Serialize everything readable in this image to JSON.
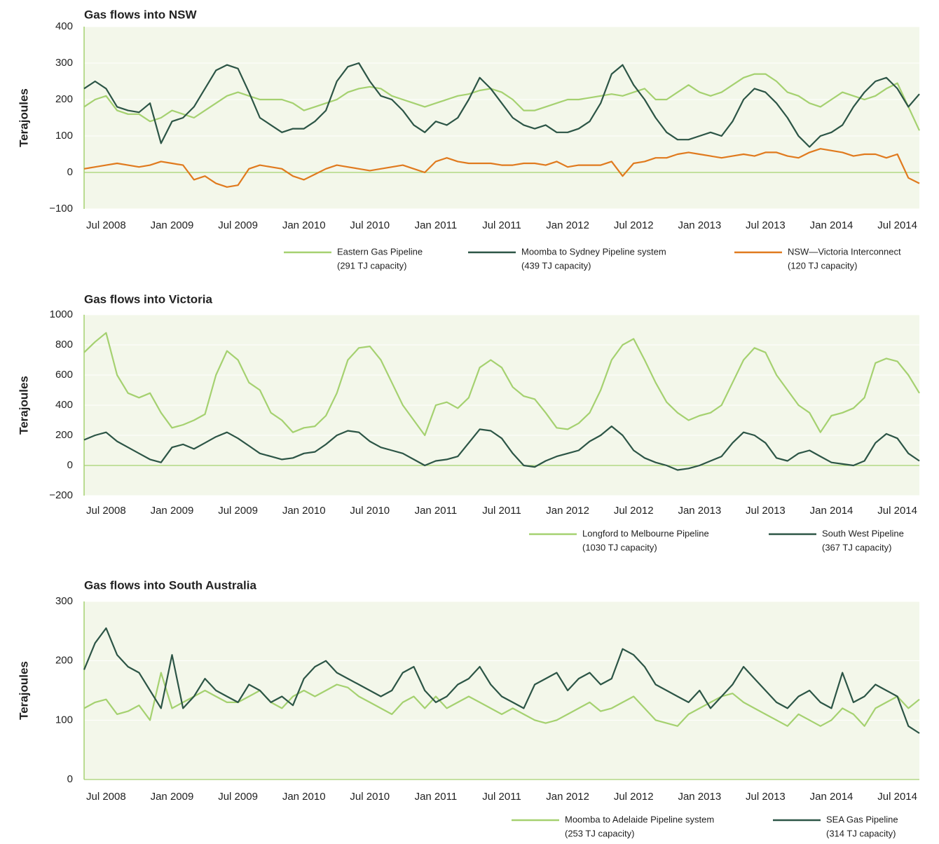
{
  "chart_data": [
    {
      "type": "line",
      "title": "Gas flows into NSW",
      "y_label": "Terajoules",
      "grid": true,
      "x": [
        "2008-05",
        "2008-06",
        "2008-07",
        "2008-08",
        "2008-09",
        "2008-10",
        "2008-11",
        "2008-12",
        "2009-01",
        "2009-02",
        "2009-03",
        "2009-04",
        "2009-05",
        "2009-06",
        "2009-07",
        "2009-08",
        "2009-09",
        "2009-10",
        "2009-11",
        "2009-12",
        "2010-01",
        "2010-02",
        "2010-03",
        "2010-04",
        "2010-05",
        "2010-06",
        "2010-07",
        "2010-08",
        "2010-09",
        "2010-10",
        "2010-11",
        "2010-12",
        "2011-01",
        "2011-02",
        "2011-03",
        "2011-04",
        "2011-05",
        "2011-06",
        "2011-07",
        "2011-08",
        "2011-09",
        "2011-10",
        "2011-11",
        "2011-12",
        "2012-01",
        "2012-02",
        "2012-03",
        "2012-04",
        "2012-05",
        "2012-06",
        "2012-07",
        "2012-08",
        "2012-09",
        "2012-10",
        "2012-11",
        "2012-12",
        "2013-01",
        "2013-02",
        "2013-03",
        "2013-04",
        "2013-05",
        "2013-06",
        "2013-07",
        "2013-08",
        "2013-09",
        "2013-10",
        "2013-11",
        "2013-12",
        "2014-01",
        "2014-02",
        "2014-03",
        "2014-04",
        "2014-05",
        "2014-06",
        "2014-07",
        "2014-08",
        "2014-09"
      ],
      "xlim": [
        "2008-05",
        "2014-09"
      ],
      "xticks": [
        {
          "value": "2008-07",
          "label": "Jul 2008"
        },
        {
          "value": "2009-01",
          "label": "Jan 2009"
        },
        {
          "value": "2009-07",
          "label": "Jul 2009"
        },
        {
          "value": "2010-01",
          "label": "Jan 2010"
        },
        {
          "value": "2010-07",
          "label": "Jul 2010"
        },
        {
          "value": "2011-01",
          "label": "Jan 2011"
        },
        {
          "value": "2011-07",
          "label": "Jul 2011"
        },
        {
          "value": "2012-01",
          "label": "Jan 2012"
        },
        {
          "value": "2012-07",
          "label": "Jul 2012"
        },
        {
          "value": "2013-01",
          "label": "Jan 2013"
        },
        {
          "value": "2013-07",
          "label": "Jul 2013"
        },
        {
          "value": "2014-01",
          "label": "Jan 2014"
        },
        {
          "value": "2014-07",
          "label": "Jul 2014"
        }
      ],
      "ylim": [
        -100,
        400
      ],
      "yticks": [
        {
          "value": -100,
          "label": "−100"
        },
        0,
        100,
        200,
        300,
        400
      ],
      "series": [
        {
          "name": "Eastern Gas Pipeline",
          "capacity": "(291 TJ capacity)",
          "color": "#a5d170",
          "values": [
            180,
            200,
            210,
            170,
            160,
            160,
            140,
            150,
            170,
            160,
            150,
            170,
            190,
            210,
            220,
            210,
            200,
            200,
            200,
            190,
            170,
            180,
            190,
            200,
            220,
            230,
            235,
            230,
            210,
            200,
            190,
            180,
            190,
            200,
            210,
            215,
            225,
            230,
            220,
            200,
            170,
            170,
            180,
            190,
            200,
            200,
            205,
            210,
            215,
            210,
            220,
            230,
            200,
            200,
            220,
            240,
            220,
            210,
            220,
            240,
            260,
            270,
            270,
            250,
            220,
            210,
            190,
            180,
            200,
            220,
            210,
            200,
            210,
            230,
            245,
            180,
            115
          ]
        },
        {
          "name": "Moomba to Sydney Pipeline system",
          "capacity": "(439 TJ capacity)",
          "color": "#2c5546",
          "values": [
            230,
            250,
            230,
            180,
            170,
            165,
            190,
            80,
            140,
            150,
            180,
            230,
            280,
            295,
            285,
            220,
            150,
            130,
            110,
            120,
            120,
            140,
            170,
            250,
            290,
            300,
            250,
            210,
            200,
            170,
            130,
            110,
            140,
            130,
            150,
            200,
            260,
            230,
            190,
            150,
            130,
            120,
            130,
            110,
            110,
            120,
            140,
            190,
            270,
            295,
            240,
            200,
            150,
            110,
            90,
            90,
            100,
            110,
            100,
            140,
            200,
            230,
            220,
            190,
            150,
            100,
            70,
            100,
            110,
            130,
            180,
            220,
            250,
            260,
            230,
            180,
            215
          ]
        },
        {
          "name": "NSW—Victoria Interconnect",
          "capacity": "(120 TJ capacity)",
          "color": "#e07a1e",
          "values": [
            10,
            15,
            20,
            25,
            20,
            15,
            20,
            30,
            25,
            20,
            -20,
            -10,
            -30,
            -40,
            -35,
            10,
            20,
            15,
            10,
            -10,
            -20,
            -5,
            10,
            20,
            15,
            10,
            5,
            10,
            15,
            20,
            10,
            0,
            30,
            40,
            30,
            25,
            25,
            25,
            20,
            20,
            25,
            25,
            20,
            30,
            15,
            20,
            20,
            20,
            30,
            -10,
            25,
            30,
            40,
            40,
            50,
            55,
            50,
            45,
            40,
            45,
            50,
            45,
            55,
            55,
            45,
            40,
            55,
            65,
            60,
            55,
            45,
            50,
            50,
            40,
            50,
            -15,
            -30
          ]
        }
      ]
    },
    {
      "type": "line",
      "title": "Gas flows into Victoria",
      "y_label": "Terajoules",
      "grid": true,
      "x": [
        "2008-05",
        "2008-06",
        "2008-07",
        "2008-08",
        "2008-09",
        "2008-10",
        "2008-11",
        "2008-12",
        "2009-01",
        "2009-02",
        "2009-03",
        "2009-04",
        "2009-05",
        "2009-06",
        "2009-07",
        "2009-08",
        "2009-09",
        "2009-10",
        "2009-11",
        "2009-12",
        "2010-01",
        "2010-02",
        "2010-03",
        "2010-04",
        "2010-05",
        "2010-06",
        "2010-07",
        "2010-08",
        "2010-09",
        "2010-10",
        "2010-11",
        "2010-12",
        "2011-01",
        "2011-02",
        "2011-03",
        "2011-04",
        "2011-05",
        "2011-06",
        "2011-07",
        "2011-08",
        "2011-09",
        "2011-10",
        "2011-11",
        "2011-12",
        "2012-01",
        "2012-02",
        "2012-03",
        "2012-04",
        "2012-05",
        "2012-06",
        "2012-07",
        "2012-08",
        "2012-09",
        "2012-10",
        "2012-11",
        "2012-12",
        "2013-01",
        "2013-02",
        "2013-03",
        "2013-04",
        "2013-05",
        "2013-06",
        "2013-07",
        "2013-08",
        "2013-09",
        "2013-10",
        "2013-11",
        "2013-12",
        "2014-01",
        "2014-02",
        "2014-03",
        "2014-04",
        "2014-05",
        "2014-06",
        "2014-07",
        "2014-08",
        "2014-09"
      ],
      "xlim": [
        "2008-05",
        "2014-09"
      ],
      "xticks": [
        {
          "value": "2008-07",
          "label": "Jul 2008"
        },
        {
          "value": "2009-01",
          "label": "Jan 2009"
        },
        {
          "value": "2009-07",
          "label": "Jul 2009"
        },
        {
          "value": "2010-01",
          "label": "Jan 2010"
        },
        {
          "value": "2010-07",
          "label": "Jul 2010"
        },
        {
          "value": "2011-01",
          "label": "Jan 2011"
        },
        {
          "value": "2011-07",
          "label": "Jul 2011"
        },
        {
          "value": "2012-01",
          "label": "Jan 2012"
        },
        {
          "value": "2012-07",
          "label": "Jul 2012"
        },
        {
          "value": "2013-01",
          "label": "Jan 2013"
        },
        {
          "value": "2013-07",
          "label": "Jul 2013"
        },
        {
          "value": "2014-01",
          "label": "Jan 2014"
        },
        {
          "value": "2014-07",
          "label": "Jul 2014"
        }
      ],
      "ylim": [
        -200,
        1000
      ],
      "yticks": [
        {
          "value": -200,
          "label": "−200"
        },
        0,
        200,
        400,
        600,
        800,
        1000
      ],
      "series": [
        {
          "name": "Longford to Melbourne Pipeline",
          "capacity": "(1030 TJ capacity)",
          "color": "#a5d170",
          "values": [
            750,
            820,
            880,
            600,
            480,
            450,
            480,
            350,
            250,
            270,
            300,
            340,
            600,
            760,
            700,
            550,
            500,
            350,
            300,
            220,
            250,
            260,
            330,
            480,
            700,
            780,
            790,
            700,
            550,
            400,
            300,
            200,
            400,
            420,
            380,
            450,
            650,
            700,
            650,
            520,
            460,
            440,
            350,
            250,
            240,
            280,
            350,
            500,
            700,
            800,
            840,
            700,
            550,
            420,
            350,
            300,
            330,
            350,
            400,
            550,
            700,
            780,
            750,
            600,
            500,
            400,
            350,
            220,
            330,
            350,
            380,
            450,
            680,
            710,
            690,
            600,
            480
          ]
        },
        {
          "name": "South West Pipeline",
          "capacity": "(367 TJ capacity)",
          "color": "#2c5546",
          "values": [
            170,
            200,
            220,
            160,
            120,
            80,
            40,
            20,
            120,
            140,
            110,
            150,
            190,
            220,
            180,
            130,
            80,
            60,
            40,
            50,
            80,
            90,
            140,
            200,
            230,
            220,
            160,
            120,
            100,
            80,
            40,
            0,
            30,
            40,
            60,
            150,
            240,
            230,
            180,
            80,
            0,
            -10,
            30,
            60,
            80,
            100,
            160,
            200,
            260,
            200,
            100,
            50,
            20,
            0,
            -30,
            -20,
            0,
            30,
            60,
            150,
            220,
            200,
            150,
            50,
            30,
            80,
            100,
            60,
            20,
            10,
            0,
            30,
            150,
            210,
            180,
            80,
            30
          ]
        }
      ]
    },
    {
      "type": "line",
      "title": "Gas flows into South Australia",
      "y_label": "Terajoules",
      "grid": true,
      "x": [
        "2008-05",
        "2008-06",
        "2008-07",
        "2008-08",
        "2008-09",
        "2008-10",
        "2008-11",
        "2008-12",
        "2009-01",
        "2009-02",
        "2009-03",
        "2009-04",
        "2009-05",
        "2009-06",
        "2009-07",
        "2009-08",
        "2009-09",
        "2009-10",
        "2009-11",
        "2009-12",
        "2010-01",
        "2010-02",
        "2010-03",
        "2010-04",
        "2010-05",
        "2010-06",
        "2010-07",
        "2010-08",
        "2010-09",
        "2010-10",
        "2010-11",
        "2010-12",
        "2011-01",
        "2011-02",
        "2011-03",
        "2011-04",
        "2011-05",
        "2011-06",
        "2011-07",
        "2011-08",
        "2011-09",
        "2011-10",
        "2011-11",
        "2011-12",
        "2012-01",
        "2012-02",
        "2012-03",
        "2012-04",
        "2012-05",
        "2012-06",
        "2012-07",
        "2012-08",
        "2012-09",
        "2012-10",
        "2012-11",
        "2012-12",
        "2013-01",
        "2013-02",
        "2013-03",
        "2013-04",
        "2013-05",
        "2013-06",
        "2013-07",
        "2013-08",
        "2013-09",
        "2013-10",
        "2013-11",
        "2013-12",
        "2014-01",
        "2014-02",
        "2014-03",
        "2014-04",
        "2014-05",
        "2014-06",
        "2014-07",
        "2014-08",
        "2014-09"
      ],
      "xlim": [
        "2008-05",
        "2014-09"
      ],
      "xticks": [
        {
          "value": "2008-07",
          "label": "Jul 2008"
        },
        {
          "value": "2009-01",
          "label": "Jan 2009"
        },
        {
          "value": "2009-07",
          "label": "Jul 2009"
        },
        {
          "value": "2010-01",
          "label": "Jan 2010"
        },
        {
          "value": "2010-07",
          "label": "Jul 2010"
        },
        {
          "value": "2011-01",
          "label": "Jan 2011"
        },
        {
          "value": "2011-07",
          "label": "Jul 2011"
        },
        {
          "value": "2012-01",
          "label": "Jan 2012"
        },
        {
          "value": "2012-07",
          "label": "Jul 2012"
        },
        {
          "value": "2013-01",
          "label": "Jan 2013"
        },
        {
          "value": "2013-07",
          "label": "Jul 2013"
        },
        {
          "value": "2014-01",
          "label": "Jan 2014"
        },
        {
          "value": "2014-07",
          "label": "Jul 2014"
        }
      ],
      "ylim": [
        0,
        300
      ],
      "yticks": [
        0,
        100,
        200,
        300
      ],
      "series": [
        {
          "name": "Moomba to Adelaide Pipeline system",
          "capacity": "(253 TJ capacity)",
          "color": "#a5d170",
          "values": [
            120,
            130,
            135,
            110,
            115,
            125,
            100,
            180,
            120,
            130,
            140,
            150,
            140,
            130,
            130,
            140,
            150,
            130,
            120,
            140,
            150,
            140,
            150,
            160,
            155,
            140,
            130,
            120,
            110,
            130,
            140,
            120,
            140,
            120,
            130,
            140,
            130,
            120,
            110,
            120,
            110,
            100,
            95,
            100,
            110,
            120,
            130,
            115,
            120,
            130,
            140,
            120,
            100,
            95,
            90,
            110,
            120,
            130,
            140,
            145,
            130,
            120,
            110,
            100,
            90,
            110,
            100,
            90,
            100,
            120,
            110,
            90,
            120,
            130,
            140,
            120,
            135
          ]
        },
        {
          "name": "SEA Gas Pipeline",
          "capacity": "(314 TJ capacity)",
          "color": "#2c5546",
          "values": [
            185,
            230,
            255,
            210,
            190,
            180,
            150,
            120,
            210,
            120,
            140,
            170,
            150,
            140,
            130,
            160,
            150,
            130,
            140,
            125,
            170,
            190,
            200,
            180,
            170,
            160,
            150,
            140,
            150,
            180,
            190,
            150,
            130,
            140,
            160,
            170,
            190,
            160,
            140,
            130,
            120,
            160,
            170,
            180,
            150,
            170,
            180,
            160,
            170,
            220,
            210,
            190,
            160,
            150,
            140,
            130,
            150,
            120,
            140,
            160,
            190,
            170,
            150,
            130,
            120,
            140,
            150,
            130,
            120,
            180,
            130,
            140,
            160,
            150,
            140,
            90,
            78
          ]
        }
      ]
    }
  ]
}
